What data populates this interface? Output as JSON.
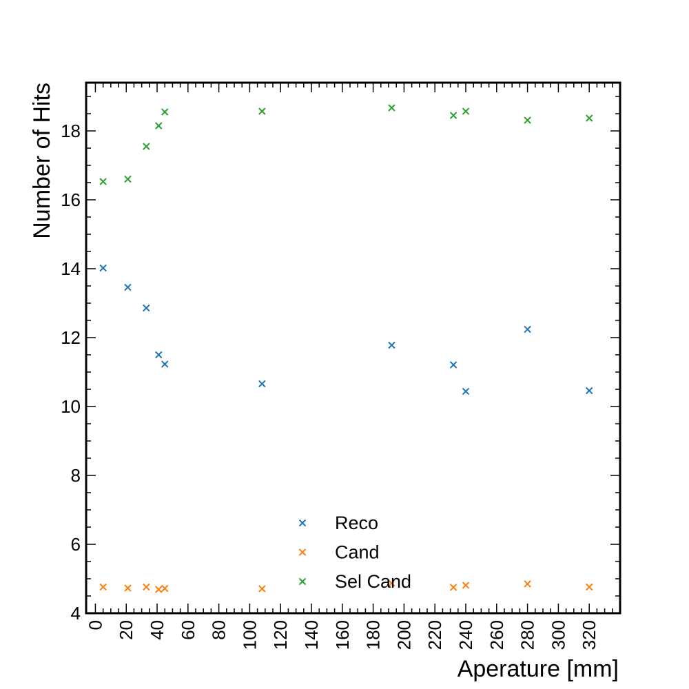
{
  "chart_data": {
    "type": "scatter",
    "title": "",
    "xlabel": "Aperature [mm]",
    "ylabel": "Number of Hits",
    "xlim": [
      -6,
      340
    ],
    "ylim": [
      4,
      19.4
    ],
    "x_ticks": [
      "0",
      "20",
      "40",
      "60",
      "80",
      "100",
      "120",
      "140",
      "160",
      "180",
      "200",
      "220",
      "240",
      "260",
      "280",
      "300",
      "320"
    ],
    "y_ticks": [
      "4",
      "6",
      "8",
      "10",
      "12",
      "14",
      "16",
      "18"
    ],
    "marker": "x",
    "grid": false,
    "legend_position": "lower center",
    "x": [
      5,
      21,
      33,
      41,
      45,
      108,
      192,
      232,
      240,
      280,
      320
    ],
    "series": [
      {
        "name": "Reco",
        "color": "#1f77b4",
        "values": [
          14.02,
          13.46,
          12.86,
          11.5,
          11.23,
          10.66,
          11.78,
          11.21,
          10.44,
          12.24,
          10.46
        ]
      },
      {
        "name": "Cand",
        "color": "#ff7f0e",
        "values": [
          4.76,
          4.73,
          4.76,
          4.69,
          4.72,
          4.71,
          4.87,
          4.75,
          4.81,
          4.85,
          4.76
        ]
      },
      {
        "name": "Sel Cand",
        "color": "#2ca02c",
        "values": [
          16.53,
          16.6,
          17.55,
          18.15,
          18.55,
          18.57,
          18.67,
          18.45,
          18.57,
          18.31,
          18.37
        ]
      }
    ]
  }
}
